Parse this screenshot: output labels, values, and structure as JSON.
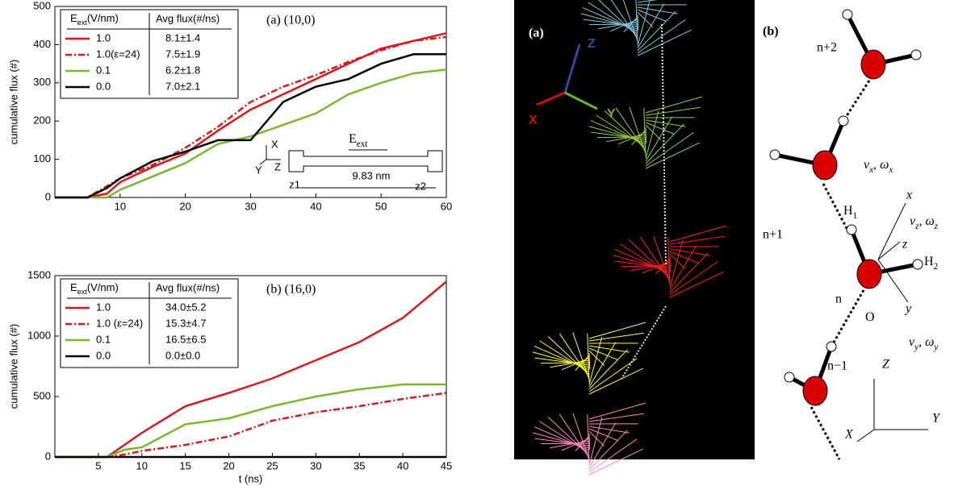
{
  "chart_data": [
    {
      "type": "line",
      "panel_label": "(a) (10,0)",
      "ylabel": "cumulative flux (#)",
      "x": [
        0,
        5,
        8,
        10,
        15,
        20,
        25,
        30,
        35,
        40,
        45,
        50,
        55,
        60
      ],
      "xlim": [
        0,
        60
      ],
      "xticks": [
        10,
        20,
        30,
        40,
        50,
        60
      ],
      "ylim": [
        0,
        500
      ],
      "yticks": [
        0,
        100,
        200,
        300,
        400,
        500
      ],
      "legend_header": {
        "field": [
          "E",
          "ext",
          "(V/nm)"
        ],
        "flux": "Avg flux(#/ns)"
      },
      "series": [
        {
          "name": "1.0",
          "flux": "8.1±1.4",
          "color": "#d7191c",
          "style": "solid",
          "values": [
            0,
            0,
            10,
            40,
            80,
            115,
            175,
            230,
            270,
            310,
            350,
            390,
            410,
            430
          ]
        },
        {
          "name": "1.0(ε=24)",
          "flux": "7.5±1.9",
          "color": "#d7191c",
          "style": "dashed",
          "values": [
            0,
            0,
            30,
            50,
            85,
            130,
            185,
            250,
            290,
            320,
            355,
            385,
            410,
            420
          ]
        },
        {
          "name": "0.1",
          "flux": "6.2±1.8",
          "color": "#7cb82f",
          "style": "solid",
          "values": [
            0,
            0,
            0,
            20,
            55,
            90,
            140,
            160,
            190,
            220,
            270,
            300,
            325,
            335
          ]
        },
        {
          "name": "0.0",
          "flux": "7.0±2.1",
          "color": "#000000",
          "style": "solid",
          "values": [
            0,
            0,
            25,
            50,
            95,
            120,
            150,
            150,
            250,
            290,
            310,
            350,
            375,
            375
          ]
        }
      ],
      "inset": {
        "field": [
          "E",
          "ext"
        ],
        "length": "9.83 nm",
        "ends": [
          "z1",
          "z2"
        ],
        "axes": [
          "X",
          "Y",
          "Z"
        ]
      }
    },
    {
      "type": "line",
      "panel_label": "(b) (16,0)",
      "ylabel": "cumulative flux (#)",
      "xlabel": "t (ns)",
      "x": [
        0,
        5,
        6,
        8,
        10,
        15,
        20,
        25,
        30,
        35,
        40,
        45
      ],
      "xlim": [
        0,
        45
      ],
      "xticks": [
        5,
        10,
        15,
        20,
        25,
        30,
        35,
        40,
        45
      ],
      "ylim": [
        0,
        1500
      ],
      "yticks": [
        0,
        500,
        1000,
        1500
      ],
      "legend_header": {
        "field": [
          "E",
          "ext",
          "(V/nm)"
        ],
        "flux": "Avg flux(#/ns)"
      },
      "series": [
        {
          "name": "1.0",
          "flux": "34.0±5.2",
          "color": "#d7191c",
          "style": "solid",
          "values": [
            0,
            0,
            0,
            100,
            200,
            420,
            530,
            650,
            800,
            950,
            1150,
            1450
          ]
        },
        {
          "name": "1.0 (ε=24)",
          "flux": "15.3±4.7",
          "color": "#d7191c",
          "style": "dashed",
          "values": [
            0,
            0,
            0,
            20,
            50,
            100,
            170,
            300,
            370,
            420,
            480,
            530
          ]
        },
        {
          "name": "0.1",
          "flux": "16.5±6.5",
          "color": "#7cb82f",
          "style": "solid",
          "values": [
            0,
            0,
            0,
            60,
            80,
            270,
            320,
            420,
            500,
            560,
            600,
            600
          ]
        },
        {
          "name": "0.0",
          "flux": "0.0±0.0",
          "color": "#000000",
          "style": "solid",
          "values": [
            0,
            0,
            0,
            0,
            0,
            0,
            0,
            0,
            0,
            0,
            0,
            0
          ]
        }
      ]
    }
  ],
  "image_panel": {
    "label": "(a)",
    "axes": [
      "Z",
      "Y",
      "X"
    ]
  },
  "diagram": {
    "label": "(b)",
    "units": [
      "n+2",
      "n+1",
      "n",
      "n−1"
    ],
    "atoms": [
      [
        "H",
        "1"
      ],
      [
        "H",
        "2"
      ],
      [
        "O"
      ]
    ],
    "velocities": [
      [
        "v",
        "x",
        ", ω",
        "x"
      ],
      [
        "v",
        "z",
        ", ω",
        "z"
      ],
      [
        "v",
        "y",
        ", ω",
        "y"
      ]
    ],
    "local_axes": [
      "x",
      "z",
      "y"
    ],
    "axes": [
      "Z",
      "Y",
      "X"
    ]
  }
}
